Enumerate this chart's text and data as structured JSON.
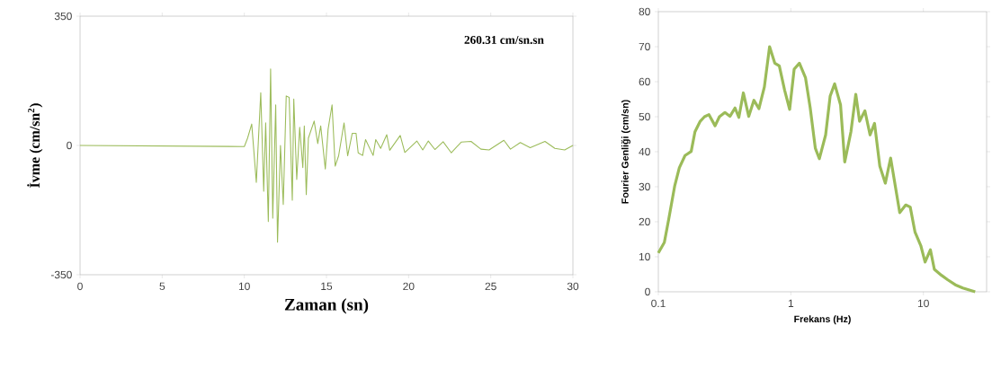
{
  "chart_data": [
    {
      "type": "line",
      "xlabel": "Zaman (sn)",
      "ylabel": "İvme (cm/sn$^{2}$)",
      "annotations": [
        "260.31 cm/sn.sn"
      ],
      "color": "#9bbb59",
      "grid": false,
      "xlim": [
        0,
        30
      ],
      "ylim": [
        -350,
        350
      ],
      "xticks": [
        0,
        5,
        10,
        15,
        20,
        25,
        30
      ],
      "yticks": [
        -350,
        0,
        350
      ],
      "x": [
        0,
        10,
        10.2,
        10.45,
        10.73,
        11.0,
        11.18,
        11.3,
        11.46,
        11.6,
        11.73,
        11.91,
        12.02,
        12.2,
        12.37,
        12.55,
        12.73,
        12.92,
        13.01,
        13.19,
        13.37,
        13.56,
        13.65,
        13.77,
        13.9,
        14.25,
        14.47,
        14.65,
        14.93,
        15.1,
        15.34,
        15.53,
        15.74,
        16.07,
        16.29,
        16.57,
        16.8,
        16.93,
        17.2,
        17.38,
        17.84,
        18.0,
        18.3,
        18.67,
        18.85,
        19.49,
        19.77,
        20.5,
        20.86,
        21.2,
        21.6,
        22.1,
        22.6,
        23.2,
        23.8,
        24.4,
        24.9,
        25.8,
        26.2,
        26.8,
        27.4,
        28.3,
        28.9,
        29.5,
        30
      ],
      "values": [
        0,
        -3,
        20,
        58,
        -100,
        143,
        -124,
        61,
        -206,
        207,
        -197,
        110,
        -262,
        0,
        -160,
        134,
        130,
        -148,
        126,
        -92,
        49,
        -60,
        53,
        -133,
        20,
        66,
        5,
        53,
        -64,
        44,
        110,
        -56,
        -28,
        61,
        -28,
        33,
        33,
        -20,
        -27,
        16,
        -27,
        16,
        -8,
        29,
        -13,
        27,
        -19,
        12,
        -12,
        12,
        -11,
        10,
        -20,
        9,
        11,
        -10,
        -12,
        14,
        -10,
        8,
        -6,
        11,
        -8,
        -12,
        0
      ]
    },
    {
      "type": "line",
      "xlabel": "Frekans (Hz)",
      "ylabel": "Fourier Genliği (cm/sn)",
      "color": "#9bbb59",
      "grid": false,
      "log": "x",
      "xlim": [
        0.1,
        30
      ],
      "ylim": [
        0,
        80
      ],
      "xticks": [
        0.1,
        1,
        10
      ],
      "yticks": [
        0,
        10,
        20,
        30,
        40,
        50,
        60,
        70,
        80
      ],
      "x": [
        0.1,
        0.111,
        0.12,
        0.133,
        0.144,
        0.159,
        0.177,
        0.189,
        0.207,
        0.223,
        0.241,
        0.268,
        0.289,
        0.318,
        0.347,
        0.379,
        0.405,
        0.438,
        0.481,
        0.526,
        0.574,
        0.631,
        0.691,
        0.756,
        0.818,
        0.897,
        0.979,
        1.059,
        1.16,
        1.29,
        1.4,
        1.53,
        1.64,
        1.83,
        1.98,
        2.14,
        2.37,
        2.55,
        2.84,
        3.09,
        3.3,
        3.62,
        3.96,
        4.28,
        4.69,
        5.16,
        5.66,
        6.63,
        7.36,
        7.96,
        8.64,
        9.56,
        10.3,
        11.3,
        12.1,
        13.7,
        15.3,
        17.4,
        19.8,
        24.6
      ],
      "values": [
        11.1,
        14.1,
        20.9,
        30.3,
        35.4,
        38.9,
        40.1,
        45.7,
        48.7,
        50.0,
        50.6,
        47.4,
        50.0,
        51.2,
        50.1,
        52.5,
        49.8,
        56.8,
        50.1,
        54.7,
        52.3,
        58.5,
        70.0,
        65.3,
        64.5,
        57.6,
        52.1,
        63.6,
        65.3,
        61.1,
        52.5,
        41.0,
        38.0,
        44.8,
        55.9,
        59.4,
        53.4,
        37.1,
        45.7,
        56.4,
        48.7,
        51.7,
        44.8,
        48.1,
        35.9,
        31.0,
        38.2,
        22.6,
        24.8,
        24.2,
        17.1,
        13.2,
        8.5,
        12.0,
        6.4,
        4.7,
        3.4,
        2.0,
        1.1,
        0
      ]
    }
  ]
}
